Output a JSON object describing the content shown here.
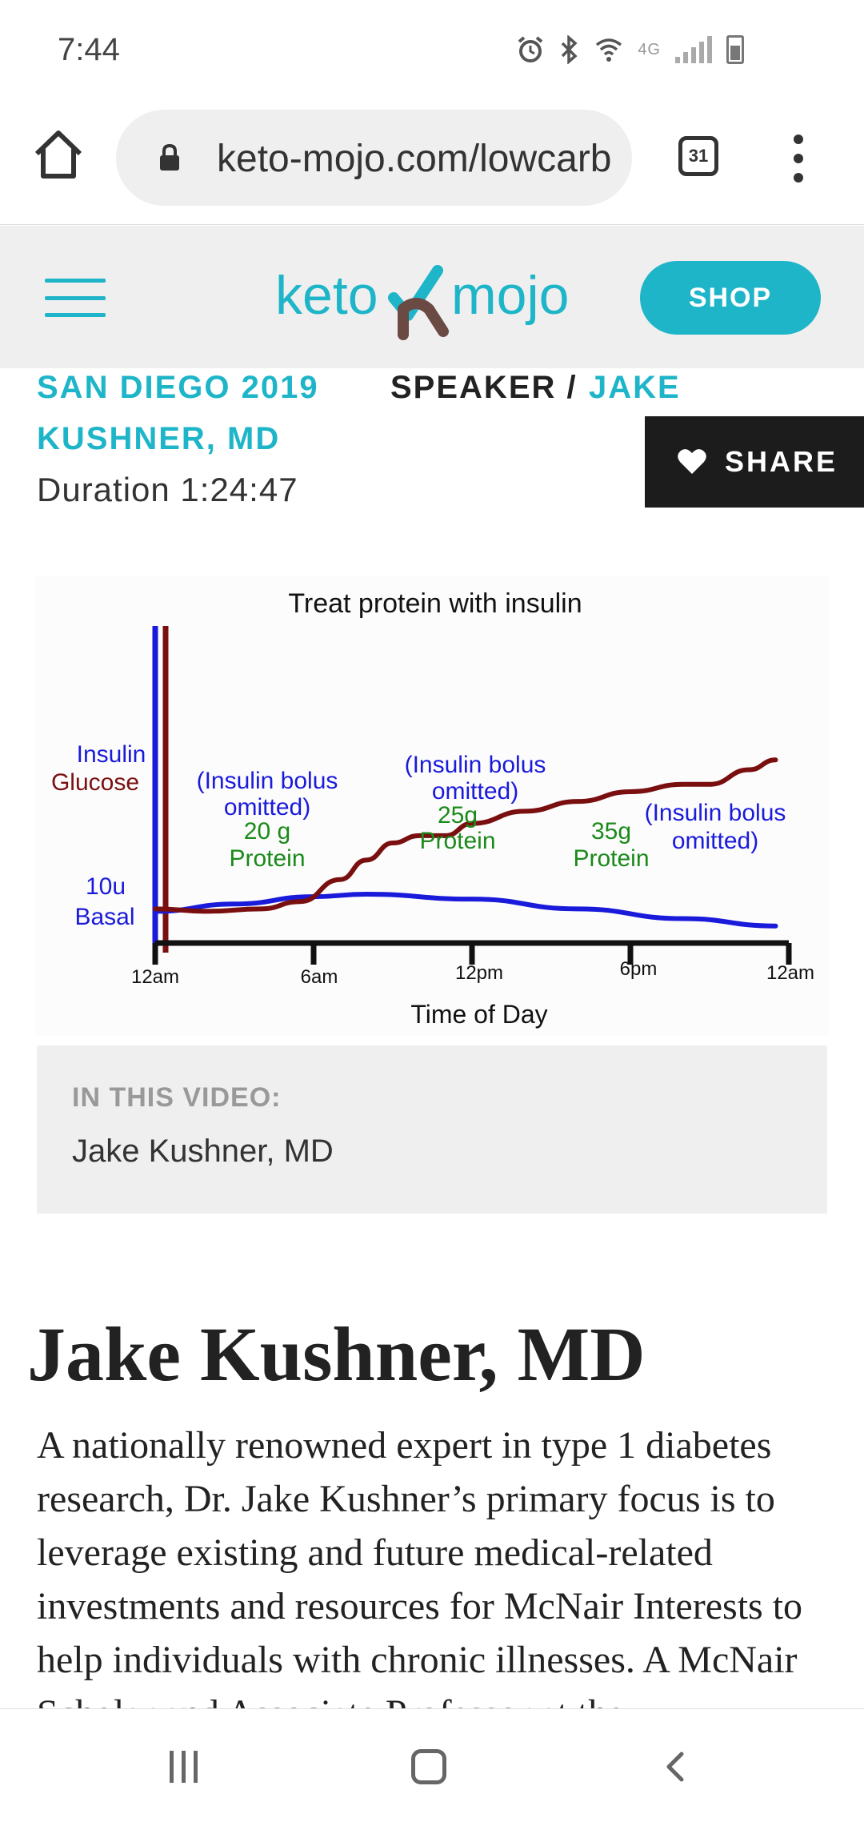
{
  "status_bar": {
    "time": "7:44",
    "network_label": "4G",
    "icons": [
      "alarm-icon",
      "bluetooth-icon",
      "wifi-icon",
      "signal-icon",
      "battery-icon"
    ]
  },
  "browser": {
    "url": "keto-mojo.com/lowcarb",
    "tab_count": "31"
  },
  "header": {
    "logo_text_left": "keto",
    "logo_text_right": "mojo",
    "shop_label": "SHOP",
    "accent_color": "#1fb5c9",
    "logo_brown": "#6b4a44"
  },
  "meta": {
    "event": "SAN DIEGO 2019",
    "speaker_prefix": "SPEAKER /",
    "speaker_first": "JAKE",
    "speaker_rest": "KUSHNER, MD",
    "duration": "Duration 1:24:47",
    "share_label": "SHARE"
  },
  "chart_data": {
    "type": "line",
    "title": "Treat protein with insulin",
    "xlabel": "Time of Day",
    "ylabel": "",
    "x_ticks": [
      "12am",
      "6am",
      "12pm",
      "6pm",
      "12am"
    ],
    "x_domain": [
      0,
      24
    ],
    "y_domain": [
      0,
      100
    ],
    "y_axis_labels": [
      {
        "text": "Insulin",
        "color": "#1a1adb"
      },
      {
        "text": "Glucose",
        "color": "#7a0f10"
      },
      {
        "text": "10u",
        "color": "#1a1adb"
      },
      {
        "text": "Basal",
        "color": "#1a1adb"
      }
    ],
    "annotations": [
      {
        "text": "(Insulin bolus",
        "color": "#1a1adb"
      },
      {
        "text": "omitted)",
        "color": "#1a1adb"
      },
      {
        "text": "20 g",
        "color": "#1a8a1a"
      },
      {
        "text": "Protein",
        "color": "#1a8a1a"
      },
      {
        "text": "(Insulin bolus",
        "color": "#1a1adb"
      },
      {
        "text": "omitted)",
        "color": "#1a1adb"
      },
      {
        "text": "25g",
        "color": "#1a8a1a"
      },
      {
        "text": "Protein",
        "color": "#1a8a1a"
      },
      {
        "text": "35g",
        "color": "#1a8a1a"
      },
      {
        "text": "Protein",
        "color": "#1a8a1a"
      },
      {
        "text": "(Insulin bolus",
        "color": "#1a1adb"
      },
      {
        "text": "omitted)",
        "color": "#1a1adb"
      }
    ],
    "series": [
      {
        "name": "Insulin",
        "color": "#1a1adb",
        "x": [
          0,
          3,
          6,
          8,
          12,
          16,
          20,
          23.5
        ],
        "y": [
          12,
          15,
          18,
          19,
          17,
          13,
          9,
          6
        ]
      },
      {
        "name": "Glucose",
        "color": "#7a0f10",
        "x": [
          0,
          2,
          4,
          5.5,
          7,
          8,
          9,
          10,
          11,
          12,
          14,
          16,
          18,
          20,
          21,
          22.5,
          23.5
        ],
        "y": [
          13,
          12,
          13,
          16,
          25,
          33,
          40,
          43,
          43,
          48,
          53,
          57,
          61,
          64,
          64,
          70,
          74
        ]
      }
    ],
    "grid": false,
    "legend": "none"
  },
  "video_box": {
    "label": "IN THIS VIDEO:",
    "name": "Jake Kushner, MD"
  },
  "article": {
    "title": "Jake Kushner, MD",
    "body": "A nationally renowned expert in type 1 diabetes research, Dr. Jake Kushner’s primary focus is to leverage existing and future medical-related investments and resources for McNair Interests to help individuals with chronic illnesses. A McNair Scholar and Associate Professor at the"
  },
  "nav_bar": {
    "icons": [
      "recent-apps-icon",
      "home-icon",
      "back-icon"
    ]
  }
}
